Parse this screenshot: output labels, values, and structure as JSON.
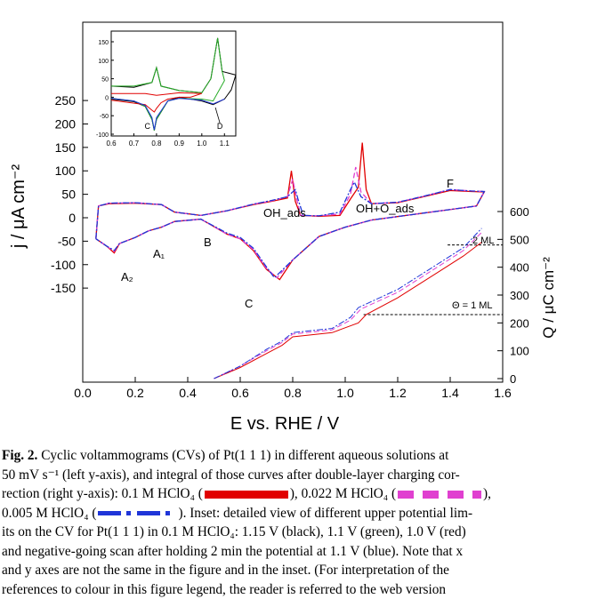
{
  "caption": {
    "label": "Fig. 2.",
    "l1": "Cyclic voltammograms (CVs) of Pt(1 1 1) in different aqueous solutions at",
    "l2": "50 mV s⁻¹ (left y-axis), and integral of those curves after double-layer charging cor-",
    "l3a": "rection (right y-axis): 0.1 M HClO₄ (",
    "l3b": "), 0.022 M HClO₄ (",
    "l3c": "),",
    "l4a": "0.005 M HClO₄ (",
    "l4b": "). Inset: detailed view of different upper potential lim-",
    "l5": "its on the CV for Pt(1 1 1) in 0.1 M HClO₄: 1.15 V (black), 1.1 V (green), 1.0 V (red)",
    "l6": "and negative-going scan after holding 2 min the potential at 1.1 V (blue). Note that x",
    "l7": "and y axes are not the same in the figure and in the inset. (For interpretation of the",
    "l8": "references to colour in this figure legend, the reader is referred to the web version"
  },
  "chart_data": [
    {
      "type": "line",
      "xlabel": "E vs. RHE / V",
      "ylabel": "j / μA cm⁻²",
      "y2label": "Q / μC cm⁻²",
      "xlim": [
        0.0,
        1.6
      ],
      "ylim": [
        -210,
        250
      ],
      "y2lim": [
        0,
        650
      ],
      "xticks": [
        "0.0",
        "0.2",
        "0.4",
        "0.6",
        "0.8",
        "1.0",
        "1.2",
        "1.4",
        "1.6"
      ],
      "yticks": [
        "250",
        "200",
        "150",
        "100",
        "50",
        "0",
        "-50",
        "-100",
        "-150"
      ],
      "y2ticks": [
        "600",
        "500",
        "400",
        "300",
        "200",
        "100",
        "0"
      ],
      "colors": {
        "red": "#e10000",
        "magenta": "#e040d0",
        "blue": "#1f35d8"
      },
      "annotations": [
        "A₂",
        "A₁",
        "B",
        "C",
        "OH_ads",
        "OH+O_ads",
        "F",
        "2 ML",
        "Θ = 1 ML"
      ],
      "series": [
        {
          "name": "0.1 M HClO₄",
          "color": "red",
          "anodic": [
            [
              0.05,
              -45
            ],
            [
              0.06,
              25
            ],
            [
              0.1,
              30
            ],
            [
              0.2,
              31
            ],
            [
              0.3,
              28
            ],
            [
              0.35,
              12
            ],
            [
              0.45,
              5
            ],
            [
              0.55,
              15
            ],
            [
              0.65,
              28
            ],
            [
              0.72,
              35
            ],
            [
              0.78,
              42
            ],
            [
              0.795,
              100
            ],
            [
              0.81,
              35
            ],
            [
              0.83,
              5
            ],
            [
              0.9,
              3
            ],
            [
              0.98,
              5
            ],
            [
              1.02,
              40
            ],
            [
              1.05,
              65
            ],
            [
              1.065,
              160
            ],
            [
              1.08,
              60
            ],
            [
              1.1,
              30
            ],
            [
              1.2,
              32
            ],
            [
              1.3,
              45
            ],
            [
              1.4,
              58
            ],
            [
              1.48,
              56
            ],
            [
              1.53,
              55
            ]
          ],
          "cathodic": [
            [
              1.53,
              55
            ],
            [
              1.5,
              25
            ],
            [
              1.3,
              10
            ],
            [
              1.1,
              -5
            ],
            [
              1.0,
              -20
            ],
            [
              0.9,
              -40
            ],
            [
              0.8,
              -90
            ],
            [
              0.75,
              -132
            ],
            [
              0.7,
              -110
            ],
            [
              0.65,
              -70
            ],
            [
              0.6,
              -45
            ],
            [
              0.55,
              -35
            ],
            [
              0.45,
              -3
            ],
            [
              0.35,
              -8
            ],
            [
              0.3,
              -20
            ],
            [
              0.25,
              -28
            ],
            [
              0.2,
              -42
            ],
            [
              0.14,
              -55
            ],
            [
              0.12,
              -75
            ],
            [
              0.09,
              -60
            ],
            [
              0.05,
              -45
            ]
          ],
          "charge": [
            [
              0.5,
              0
            ],
            [
              0.6,
              40
            ],
            [
              0.7,
              90
            ],
            [
              0.76,
              120
            ],
            [
              0.8,
              150
            ],
            [
              0.95,
              165
            ],
            [
              1.05,
              200
            ],
            [
              1.08,
              230
            ],
            [
              1.2,
              290
            ],
            [
              1.35,
              380
            ],
            [
              1.45,
              440
            ],
            [
              1.52,
              490
            ]
          ]
        },
        {
          "name": "0.022 M HClO₄",
          "color": "magenta",
          "anodic": [
            [
              0.05,
              -45
            ],
            [
              0.06,
              25
            ],
            [
              0.1,
              31
            ],
            [
              0.2,
              32
            ],
            [
              0.3,
              28
            ],
            [
              0.35,
              12
            ],
            [
              0.45,
              5
            ],
            [
              0.55,
              15
            ],
            [
              0.65,
              29
            ],
            [
              0.72,
              36
            ],
            [
              0.78,
              45
            ],
            [
              0.8,
              82
            ],
            [
              0.815,
              40
            ],
            [
              0.83,
              5
            ],
            [
              0.9,
              4
            ],
            [
              0.98,
              8
            ],
            [
              1.02,
              50
            ],
            [
              1.04,
              108
            ],
            [
              1.06,
              55
            ],
            [
              1.1,
              30
            ],
            [
              1.2,
              33
            ],
            [
              1.3,
              46
            ],
            [
              1.4,
              60
            ],
            [
              1.48,
              57
            ],
            [
              1.53,
              56
            ]
          ],
          "cathodic": [
            [
              1.53,
              56
            ],
            [
              1.5,
              25
            ],
            [
              1.3,
              10
            ],
            [
              1.1,
              -5
            ],
            [
              1.0,
              -20
            ],
            [
              0.9,
              -40
            ],
            [
              0.8,
              -90
            ],
            [
              0.74,
              -128
            ],
            [
              0.7,
              -108
            ],
            [
              0.65,
              -68
            ],
            [
              0.6,
              -45
            ],
            [
              0.55,
              -35
            ],
            [
              0.45,
              -3
            ],
            [
              0.35,
              -8
            ],
            [
              0.3,
              -20
            ],
            [
              0.25,
              -28
            ],
            [
              0.2,
              -42
            ],
            [
              0.14,
              -55
            ],
            [
              0.12,
              -72
            ],
            [
              0.09,
              -60
            ],
            [
              0.05,
              -45
            ]
          ],
          "charge": [
            [
              0.5,
              0
            ],
            [
              0.6,
              45
            ],
            [
              0.7,
              100
            ],
            [
              0.76,
              130
            ],
            [
              0.8,
              160
            ],
            [
              0.95,
              175
            ],
            [
              1.02,
              210
            ],
            [
              1.06,
              250
            ],
            [
              1.2,
              310
            ],
            [
              1.35,
              400
            ],
            [
              1.45,
              460
            ],
            [
              1.52,
              525
            ]
          ]
        },
        {
          "name": "0.005 M HClO₄",
          "color": "blue",
          "anodic": [
            [
              0.05,
              -45
            ],
            [
              0.06,
              25
            ],
            [
              0.1,
              31
            ],
            [
              0.2,
              32
            ],
            [
              0.3,
              28
            ],
            [
              0.35,
              12
            ],
            [
              0.45,
              5
            ],
            [
              0.55,
              15
            ],
            [
              0.65,
              29
            ],
            [
              0.72,
              37
            ],
            [
              0.78,
              45
            ],
            [
              0.81,
              60
            ],
            [
              0.82,
              40
            ],
            [
              0.84,
              5
            ],
            [
              0.9,
              4
            ],
            [
              0.98,
              12
            ],
            [
              1.02,
              60
            ],
            [
              1.035,
              76
            ],
            [
              1.06,
              45
            ],
            [
              1.1,
              30
            ],
            [
              1.2,
              33
            ],
            [
              1.3,
              46
            ],
            [
              1.4,
              60
            ],
            [
              1.48,
              57
            ],
            [
              1.53,
              56
            ]
          ],
          "cathodic": [
            [
              1.53,
              56
            ],
            [
              1.5,
              25
            ],
            [
              1.3,
              10
            ],
            [
              1.1,
              -5
            ],
            [
              1.0,
              -20
            ],
            [
              0.9,
              -40
            ],
            [
              0.8,
              -90
            ],
            [
              0.73,
              -128
            ],
            [
              0.7,
              -105
            ],
            [
              0.65,
              -65
            ],
            [
              0.6,
              -42
            ],
            [
              0.55,
              -33
            ],
            [
              0.45,
              -3
            ],
            [
              0.35,
              -8
            ],
            [
              0.3,
              -20
            ],
            [
              0.25,
              -28
            ],
            [
              0.2,
              -42
            ],
            [
              0.14,
              -55
            ],
            [
              0.12,
              -70
            ],
            [
              0.09,
              -60
            ],
            [
              0.05,
              -45
            ]
          ],
          "charge": [
            [
              0.5,
              0
            ],
            [
              0.6,
              45
            ],
            [
              0.7,
              105
            ],
            [
              0.76,
              135
            ],
            [
              0.8,
              165
            ],
            [
              0.95,
              180
            ],
            [
              1.02,
              220
            ],
            [
              1.05,
              255
            ],
            [
              1.2,
              320
            ],
            [
              1.35,
              410
            ],
            [
              1.45,
              470
            ],
            [
              1.52,
              540
            ]
          ]
        }
      ]
    },
    {
      "type": "line",
      "xlim": [
        0.6,
        1.15
      ],
      "ylim": [
        -100,
        150
      ],
      "xticks": [
        "0.6",
        "0.7",
        "0.8",
        "0.9",
        "1.0",
        "1.1"
      ],
      "yticks": [
        "150",
        "100",
        "50",
        "0",
        "-50",
        "-100"
      ],
      "annotations": [
        "C",
        "D"
      ],
      "series": [
        {
          "name": "1.15 V",
          "color": "#000000",
          "points": [
            [
              0.6,
              30
            ],
            [
              0.7,
              27
            ],
            [
              0.78,
              40
            ],
            [
              0.8,
              80
            ],
            [
              0.82,
              30
            ],
            [
              0.9,
              18
            ],
            [
              1.0,
              12
            ],
            [
              1.04,
              50
            ],
            [
              1.07,
              160
            ],
            [
              1.09,
              70
            ],
            [
              1.12,
              65
            ],
            [
              1.15,
              60
            ],
            [
              1.13,
              20
            ],
            [
              1.1,
              -5
            ],
            [
              1.05,
              -20
            ],
            [
              1.0,
              -10
            ],
            [
              0.9,
              0
            ],
            [
              0.85,
              -10
            ],
            [
              0.8,
              -60
            ],
            [
              0.79,
              -90
            ],
            [
              0.78,
              -60
            ],
            [
              0.75,
              -25
            ],
            [
              0.7,
              -12
            ],
            [
              0.6,
              -5
            ]
          ]
        },
        {
          "name": "1.1 V",
          "color": "#22aa22",
          "points": [
            [
              0.6,
              30
            ],
            [
              0.7,
              30
            ],
            [
              0.78,
              40
            ],
            [
              0.8,
              80
            ],
            [
              0.82,
              30
            ],
            [
              0.9,
              18
            ],
            [
              1.0,
              12
            ],
            [
              1.04,
              50
            ],
            [
              1.07,
              160
            ],
            [
              1.09,
              70
            ],
            [
              1.1,
              45
            ],
            [
              1.05,
              -10
            ],
            [
              1.0,
              -5
            ],
            [
              0.9,
              -3
            ],
            [
              0.85,
              -10
            ],
            [
              0.8,
              -60
            ],
            [
              0.79,
              -90
            ],
            [
              0.78,
              -60
            ],
            [
              0.75,
              -25
            ],
            [
              0.7,
              -10
            ],
            [
              0.6,
              -3
            ]
          ]
        },
        {
          "name": "1.0 V",
          "color": "#e10000",
          "points": [
            [
              0.6,
              10
            ],
            [
              0.75,
              10
            ],
            [
              0.8,
              5
            ],
            [
              0.9,
              12
            ],
            [
              1.0,
              10
            ],
            [
              0.95,
              0
            ],
            [
              0.9,
              0
            ],
            [
              0.85,
              -5
            ],
            [
              0.82,
              -15
            ],
            [
              0.8,
              -30
            ],
            [
              0.79,
              -40
            ],
            [
              0.78,
              -35
            ],
            [
              0.75,
              -20
            ],
            [
              0.6,
              -8
            ]
          ]
        },
        {
          "name": "1.1 V hold",
          "color": "#1f35d8",
          "points": [
            [
              1.1,
              -5
            ],
            [
              1.05,
              -18
            ],
            [
              1.0,
              -8
            ],
            [
              0.9,
              -3
            ],
            [
              0.85,
              -10
            ],
            [
              0.8,
              -55
            ],
            [
              0.79,
              -88
            ],
            [
              0.78,
              -55
            ],
            [
              0.75,
              -22
            ],
            [
              0.7,
              -10
            ],
            [
              0.6,
              -3
            ]
          ]
        }
      ]
    }
  ]
}
